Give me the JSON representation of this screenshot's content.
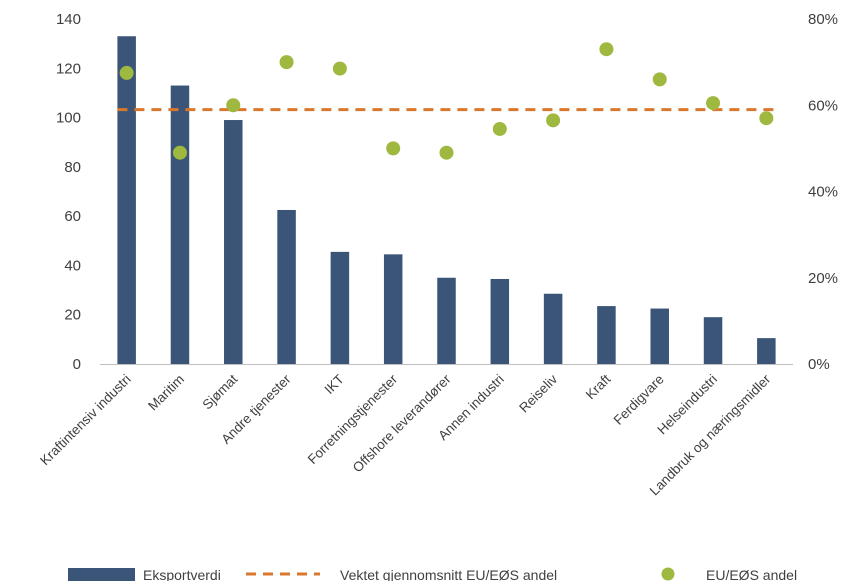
{
  "chart_data": {
    "type": "bar",
    "categories": [
      "Kraftintensiv industri",
      "Maritim",
      "Sjømat",
      "Andre tjenester",
      "IKT",
      "Forretningstjenester",
      "Offshore leverandører",
      "Annen industri",
      "Reiseliv",
      "Kraft",
      "Ferdigvare",
      "Helseindustri",
      "Landbruk og næringsmidler"
    ],
    "series": [
      {
        "name": "Eksportverdi",
        "type": "bar",
        "axis": "left",
        "color": "#3a5577",
        "values": [
          133,
          113,
          99,
          62.5,
          45.5,
          44.5,
          35,
          34.5,
          28.5,
          23.5,
          22.5,
          19,
          10.5
        ]
      },
      {
        "name": "EU/EØS andel",
        "type": "scatter",
        "axis": "right",
        "color": "#9fb83f",
        "values": [
          0.675,
          0.49,
          0.6,
          0.7,
          0.685,
          0.5,
          0.49,
          0.545,
          0.565,
          0.73,
          0.66,
          0.605,
          0.57
        ]
      },
      {
        "name": "Vektet gjennomsnitt EU/EØS andel",
        "type": "line",
        "axis": "right",
        "color": "#d9782d",
        "dash": true,
        "value": 0.59
      }
    ],
    "ylim": [
      0,
      140
    ],
    "yticks": [
      "0",
      "20",
      "40",
      "60",
      "80",
      "100",
      "120",
      "140"
    ],
    "y2lim": [
      0,
      0.8
    ],
    "y2ticks": [
      "0%",
      "20%",
      "40%",
      "60%",
      "80%"
    ],
    "grid": false,
    "legend": "bottom"
  }
}
